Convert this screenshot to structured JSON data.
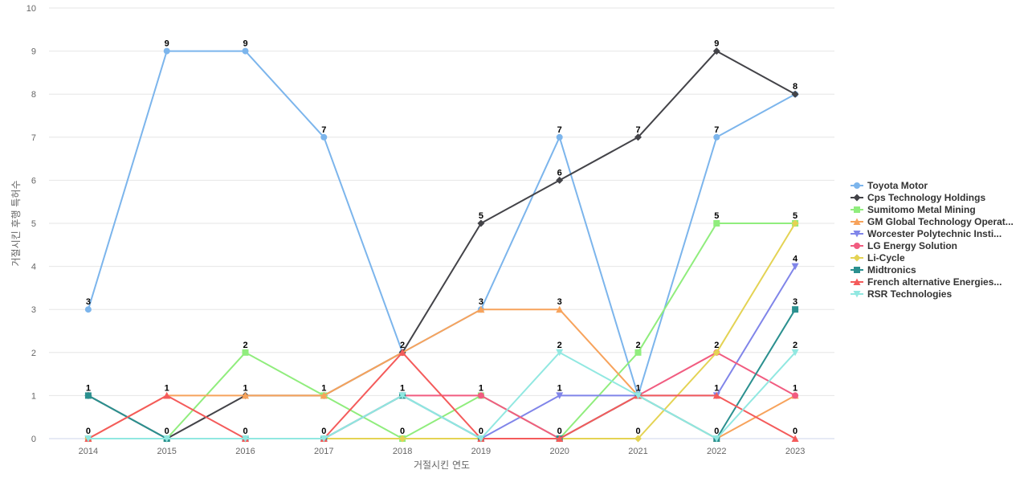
{
  "chart_data": {
    "type": "line",
    "xlabel": "거절시킨 연도",
    "ylabel": "거절시킨 후행 특허수",
    "ylim": [
      0,
      10
    ],
    "y_ticks": [
      "0",
      "1",
      "2",
      "3",
      "4",
      "5",
      "6",
      "7",
      "8",
      "9",
      "10"
    ],
    "categories": [
      "2014",
      "2015",
      "2016",
      "2017",
      "2018",
      "2019",
      "2020",
      "2021",
      "2022",
      "2023"
    ],
    "grid": true,
    "legend_position": "right",
    "series": [
      {
        "name": "Toyota Motor",
        "color": "#7cb5ec",
        "marker": "circle",
        "values": [
          3,
          9,
          9,
          7,
          2,
          3,
          7,
          1,
          7,
          8
        ]
      },
      {
        "name": "Cps Technology Holdings",
        "color": "#434348",
        "marker": "diamond",
        "values": [
          1,
          0,
          1,
          1,
          2,
          5,
          6,
          7,
          9,
          8
        ]
      },
      {
        "name": "Sumitomo Metal Mining",
        "color": "#90ed7d",
        "marker": "square",
        "values": [
          0,
          0,
          2,
          1,
          0,
          1,
          0,
          2,
          5,
          5
        ]
      },
      {
        "name": "GM Global Technology Operat...",
        "color": "#f7a35c",
        "marker": "triangle",
        "values": [
          0,
          1,
          1,
          1,
          2,
          3,
          3,
          1,
          0,
          1
        ]
      },
      {
        "name": "Worcester Polytechnic Insti...",
        "color": "#8085e9",
        "marker": "triangle-down",
        "values": [
          0,
          0,
          0,
          0,
          1,
          0,
          1,
          1,
          1,
          4
        ]
      },
      {
        "name": "LG Energy Solution",
        "color": "#f15c80",
        "marker": "circle",
        "values": [
          0,
          0,
          0,
          0,
          1,
          1,
          0,
          1,
          2,
          1
        ]
      },
      {
        "name": "Li-Cycle",
        "color": "#e4d354",
        "marker": "diamond",
        "values": [
          0,
          0,
          0,
          0,
          0,
          0,
          0,
          0,
          2,
          5
        ]
      },
      {
        "name": "Midtronics",
        "color": "#2b908f",
        "marker": "square",
        "values": [
          1,
          0,
          0,
          0,
          1,
          0,
          0,
          1,
          0,
          3
        ]
      },
      {
        "name": "French alternative Energies...",
        "color": "#f45b5b",
        "marker": "triangle",
        "values": [
          0,
          1,
          0,
          0,
          2,
          0,
          0,
          1,
          1,
          0
        ]
      },
      {
        "name": "RSR Technologies",
        "color": "#91e8e1",
        "marker": "triangle-down",
        "values": [
          0,
          0,
          0,
          0,
          1,
          0,
          2,
          1,
          0,
          2
        ]
      }
    ],
    "point_labels": [
      {
        "x": "2014",
        "value": "3"
      },
      {
        "x": "2014",
        "value": "1"
      },
      {
        "x": "2014",
        "value": "0"
      },
      {
        "x": "2015",
        "value": "9"
      },
      {
        "x": "2015",
        "value": "1"
      },
      {
        "x": "2015",
        "value": "0"
      },
      {
        "x": "2016",
        "value": "9"
      },
      {
        "x": "2016",
        "value": "2"
      },
      {
        "x": "2016",
        "value": "1"
      },
      {
        "x": "2016",
        "value": "0"
      },
      {
        "x": "2017",
        "value": "7"
      },
      {
        "x": "2017",
        "value": "1"
      },
      {
        "x": "2017",
        "value": "0"
      },
      {
        "x": "2018",
        "value": "2"
      },
      {
        "x": "2018",
        "value": "1"
      },
      {
        "x": "2018",
        "value": "0"
      },
      {
        "x": "2019",
        "value": "5"
      },
      {
        "x": "2019",
        "value": "3"
      },
      {
        "x": "2019",
        "value": "1"
      },
      {
        "x": "2019",
        "value": "0"
      },
      {
        "x": "2020",
        "value": "7"
      },
      {
        "x": "2020",
        "value": "6"
      },
      {
        "x": "2020",
        "value": "3"
      },
      {
        "x": "2020",
        "value": "2"
      },
      {
        "x": "2020",
        "value": "1"
      },
      {
        "x": "2020",
        "value": "0"
      },
      {
        "x": "2021",
        "value": "7"
      },
      {
        "x": "2021",
        "value": "2"
      },
      {
        "x": "2021",
        "value": "1"
      },
      {
        "x": "2021",
        "value": "0"
      },
      {
        "x": "2022",
        "value": "9"
      },
      {
        "x": "2022",
        "value": "7"
      },
      {
        "x": "2022",
        "value": "5"
      },
      {
        "x": "2022",
        "value": "2"
      },
      {
        "x": "2022",
        "value": "1"
      },
      {
        "x": "2022",
        "value": "0"
      },
      {
        "x": "2023",
        "value": "8"
      },
      {
        "x": "2023",
        "value": "5"
      },
      {
        "x": "2023",
        "value": "4"
      },
      {
        "x": "2023",
        "value": "3"
      },
      {
        "x": "2023",
        "value": "2"
      },
      {
        "x": "2023",
        "value": "1"
      },
      {
        "x": "2023",
        "value": "0"
      }
    ]
  }
}
